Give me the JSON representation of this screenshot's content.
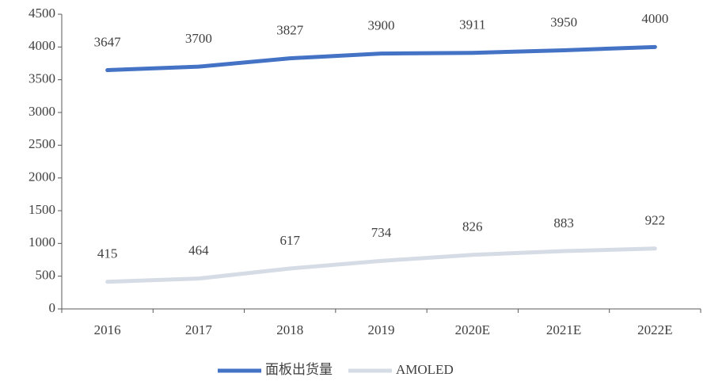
{
  "chart_data": {
    "type": "line",
    "categories": [
      "2016",
      "2017",
      "2018",
      "2019",
      "2020E",
      "2021E",
      "2022E"
    ],
    "series": [
      {
        "name": "面板出货量",
        "color": "#4472c4",
        "values": [
          3647,
          3700,
          3827,
          3900,
          3911,
          3950,
          4000
        ]
      },
      {
        "name": "AMOLED",
        "color": "#d6dce5",
        "values": [
          415,
          464,
          617,
          734,
          826,
          883,
          922
        ]
      }
    ],
    "ylim": [
      0,
      4500
    ],
    "yticks": [
      0,
      500,
      1000,
      1500,
      2000,
      2500,
      3000,
      3500,
      4000,
      4500
    ],
    "grid": false,
    "legend": "bottom"
  }
}
